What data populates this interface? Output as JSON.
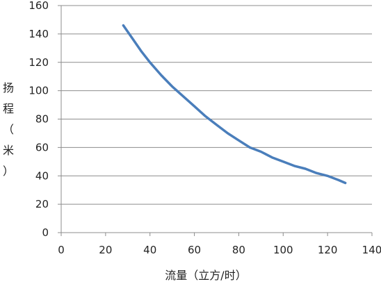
{
  "chart_data": {
    "type": "line",
    "title": "",
    "xlabel": "流量（立方/时）",
    "ylabel": "扬程（米）",
    "xlim": [
      0,
      140
    ],
    "ylim": [
      0,
      160
    ],
    "x_ticks": [
      0,
      20,
      40,
      60,
      80,
      100,
      120,
      140
    ],
    "y_ticks": [
      0,
      20,
      40,
      60,
      80,
      100,
      120,
      140,
      160
    ],
    "grid": "horizontal",
    "legend": "none",
    "series": [
      {
        "color": "#4a7ebb",
        "x": [
          28,
          32,
          36,
          40,
          45,
          50,
          55,
          60,
          65,
          70,
          75,
          80,
          85,
          90,
          95,
          100,
          105,
          110,
          115,
          120,
          125,
          128
        ],
        "y": [
          146,
          137,
          128,
          120,
          111,
          103,
          96,
          89,
          82,
          76,
          70,
          65,
          60,
          57,
          53,
          50,
          47,
          45,
          42,
          40,
          37,
          35
        ]
      }
    ]
  }
}
